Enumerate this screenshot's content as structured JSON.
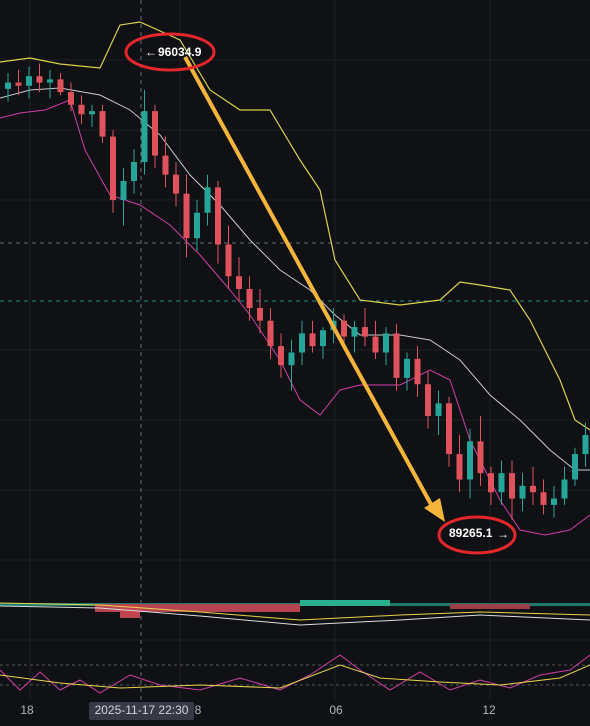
{
  "chart_data": {
    "type": "candlestick",
    "ylim": [
      88160,
      97450
    ],
    "up_color": "#26a69a",
    "down_color": "#e0525c",
    "candles": [
      [
        96050,
        96300,
        95850,
        96150
      ],
      [
        96150,
        96350,
        95950,
        96100
      ],
      [
        96100,
        96400,
        95900,
        96250
      ],
      [
        96250,
        96450,
        96000,
        96150
      ],
      [
        96150,
        96350,
        95900,
        96200
      ],
      [
        96200,
        96300,
        95950,
        96000
      ],
      [
        96000,
        96150,
        95700,
        95800
      ],
      [
        95800,
        95950,
        95500,
        95650
      ],
      [
        95650,
        95800,
        95450,
        95700
      ],
      [
        95700,
        95800,
        95200,
        95300
      ],
      [
        95300,
        95400,
        94100,
        94300
      ],
      [
        94300,
        94800,
        93900,
        94600
      ],
      [
        94600,
        95100,
        94400,
        94900
      ],
      [
        94900,
        96034.9,
        94700,
        95700
      ],
      [
        95700,
        95800,
        94800,
        95000
      ],
      [
        95000,
        95300,
        94500,
        94700
      ],
      [
        94700,
        94900,
        94200,
        94400
      ],
      [
        94400,
        94700,
        93400,
        93700
      ],
      [
        93700,
        94300,
        93500,
        94100
      ],
      [
        94100,
        94700,
        93900,
        94500
      ],
      [
        94500,
        94600,
        93300,
        93600
      ],
      [
        93600,
        93900,
        92900,
        93100
      ],
      [
        93100,
        93400,
        92700,
        92900
      ],
      [
        92900,
        93100,
        92400,
        92600
      ],
      [
        92600,
        92900,
        92200,
        92400
      ],
      [
        92400,
        92600,
        91800,
        92000
      ],
      [
        92000,
        92200,
        91500,
        91700
      ],
      [
        91700,
        92100,
        91300,
        91900
      ],
      [
        91900,
        92400,
        91700,
        92200
      ],
      [
        92200,
        92400,
        91900,
        92000
      ],
      [
        92000,
        92300,
        91800,
        92250
      ],
      [
        92250,
        92600,
        92050,
        92400
      ],
      [
        92400,
        92500,
        92050,
        92150
      ],
      [
        92150,
        92400,
        91900,
        92300
      ],
      [
        92300,
        92600,
        92000,
        92150
      ],
      [
        92150,
        92400,
        91800,
        91900
      ],
      [
        91900,
        92300,
        91700,
        92200
      ],
      [
        92200,
        92350,
        91300,
        91500
      ],
      [
        91500,
        91900,
        91300,
        91800
      ],
      [
        91800,
        92000,
        91200,
        91400
      ],
      [
        91400,
        91600,
        90700,
        90900
      ],
      [
        90900,
        91300,
        90600,
        91100
      ],
      [
        91100,
        91200,
        90100,
        90300
      ],
      [
        90300,
        90600,
        89700,
        89900
      ],
      [
        89900,
        90700,
        89600,
        90500
      ],
      [
        90500,
        90900,
        89800,
        90000
      ],
      [
        90000,
        90100,
        89500,
        89700
      ],
      [
        89700,
        90200,
        89500,
        90000
      ],
      [
        90000,
        90200,
        89265.1,
        89600
      ],
      [
        89600,
        90000,
        89400,
        89800
      ],
      [
        89800,
        90100,
        89500,
        89700
      ],
      [
        89700,
        89900,
        89350,
        89500
      ],
      [
        89500,
        89800,
        89300,
        89600
      ],
      [
        89600,
        90100,
        89500,
        89900
      ],
      [
        89900,
        90400,
        89800,
        90300
      ],
      [
        90300,
        90800,
        90100,
        90600
      ]
    ],
    "annotations": [
      96034.9,
      89265.1
    ],
    "xtick_labels": [
      "18",
      "8",
      "06",
      "12"
    ],
    "crosshair_label": "2025-11-17 22:30"
  }
}
